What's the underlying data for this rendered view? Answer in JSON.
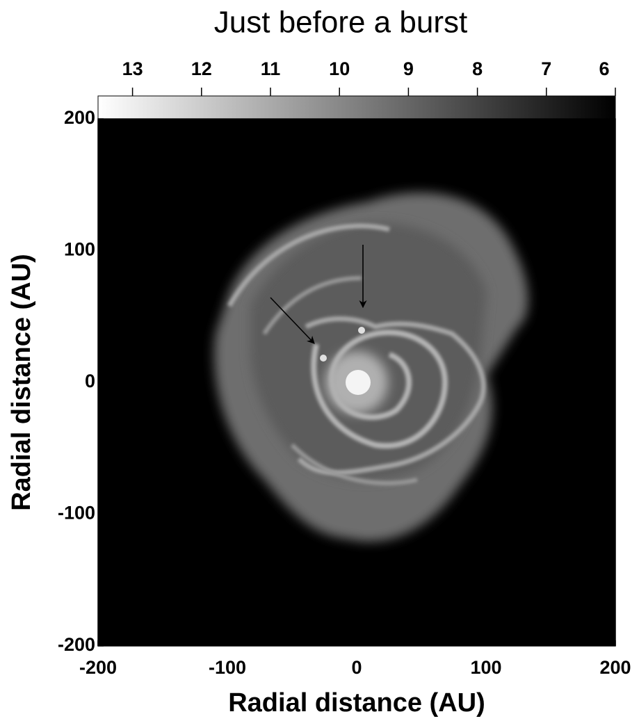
{
  "chart_data": {
    "type": "image",
    "title": "Just before a burst",
    "xlabel": "Radial distance (AU)",
    "ylabel": "Radial distance (AU)",
    "xlim": [
      -200,
      200
    ],
    "xticks": [
      -200,
      -100,
      0,
      100,
      200
    ],
    "ylim": [
      -200,
      200
    ],
    "yticks": [
      -200,
      -100,
      0,
      100,
      200
    ],
    "colorbar": {
      "clim": [
        13.5,
        6
      ],
      "ticks": [
        13,
        12,
        11,
        10,
        9,
        8,
        7,
        6
      ]
    }
  }
}
